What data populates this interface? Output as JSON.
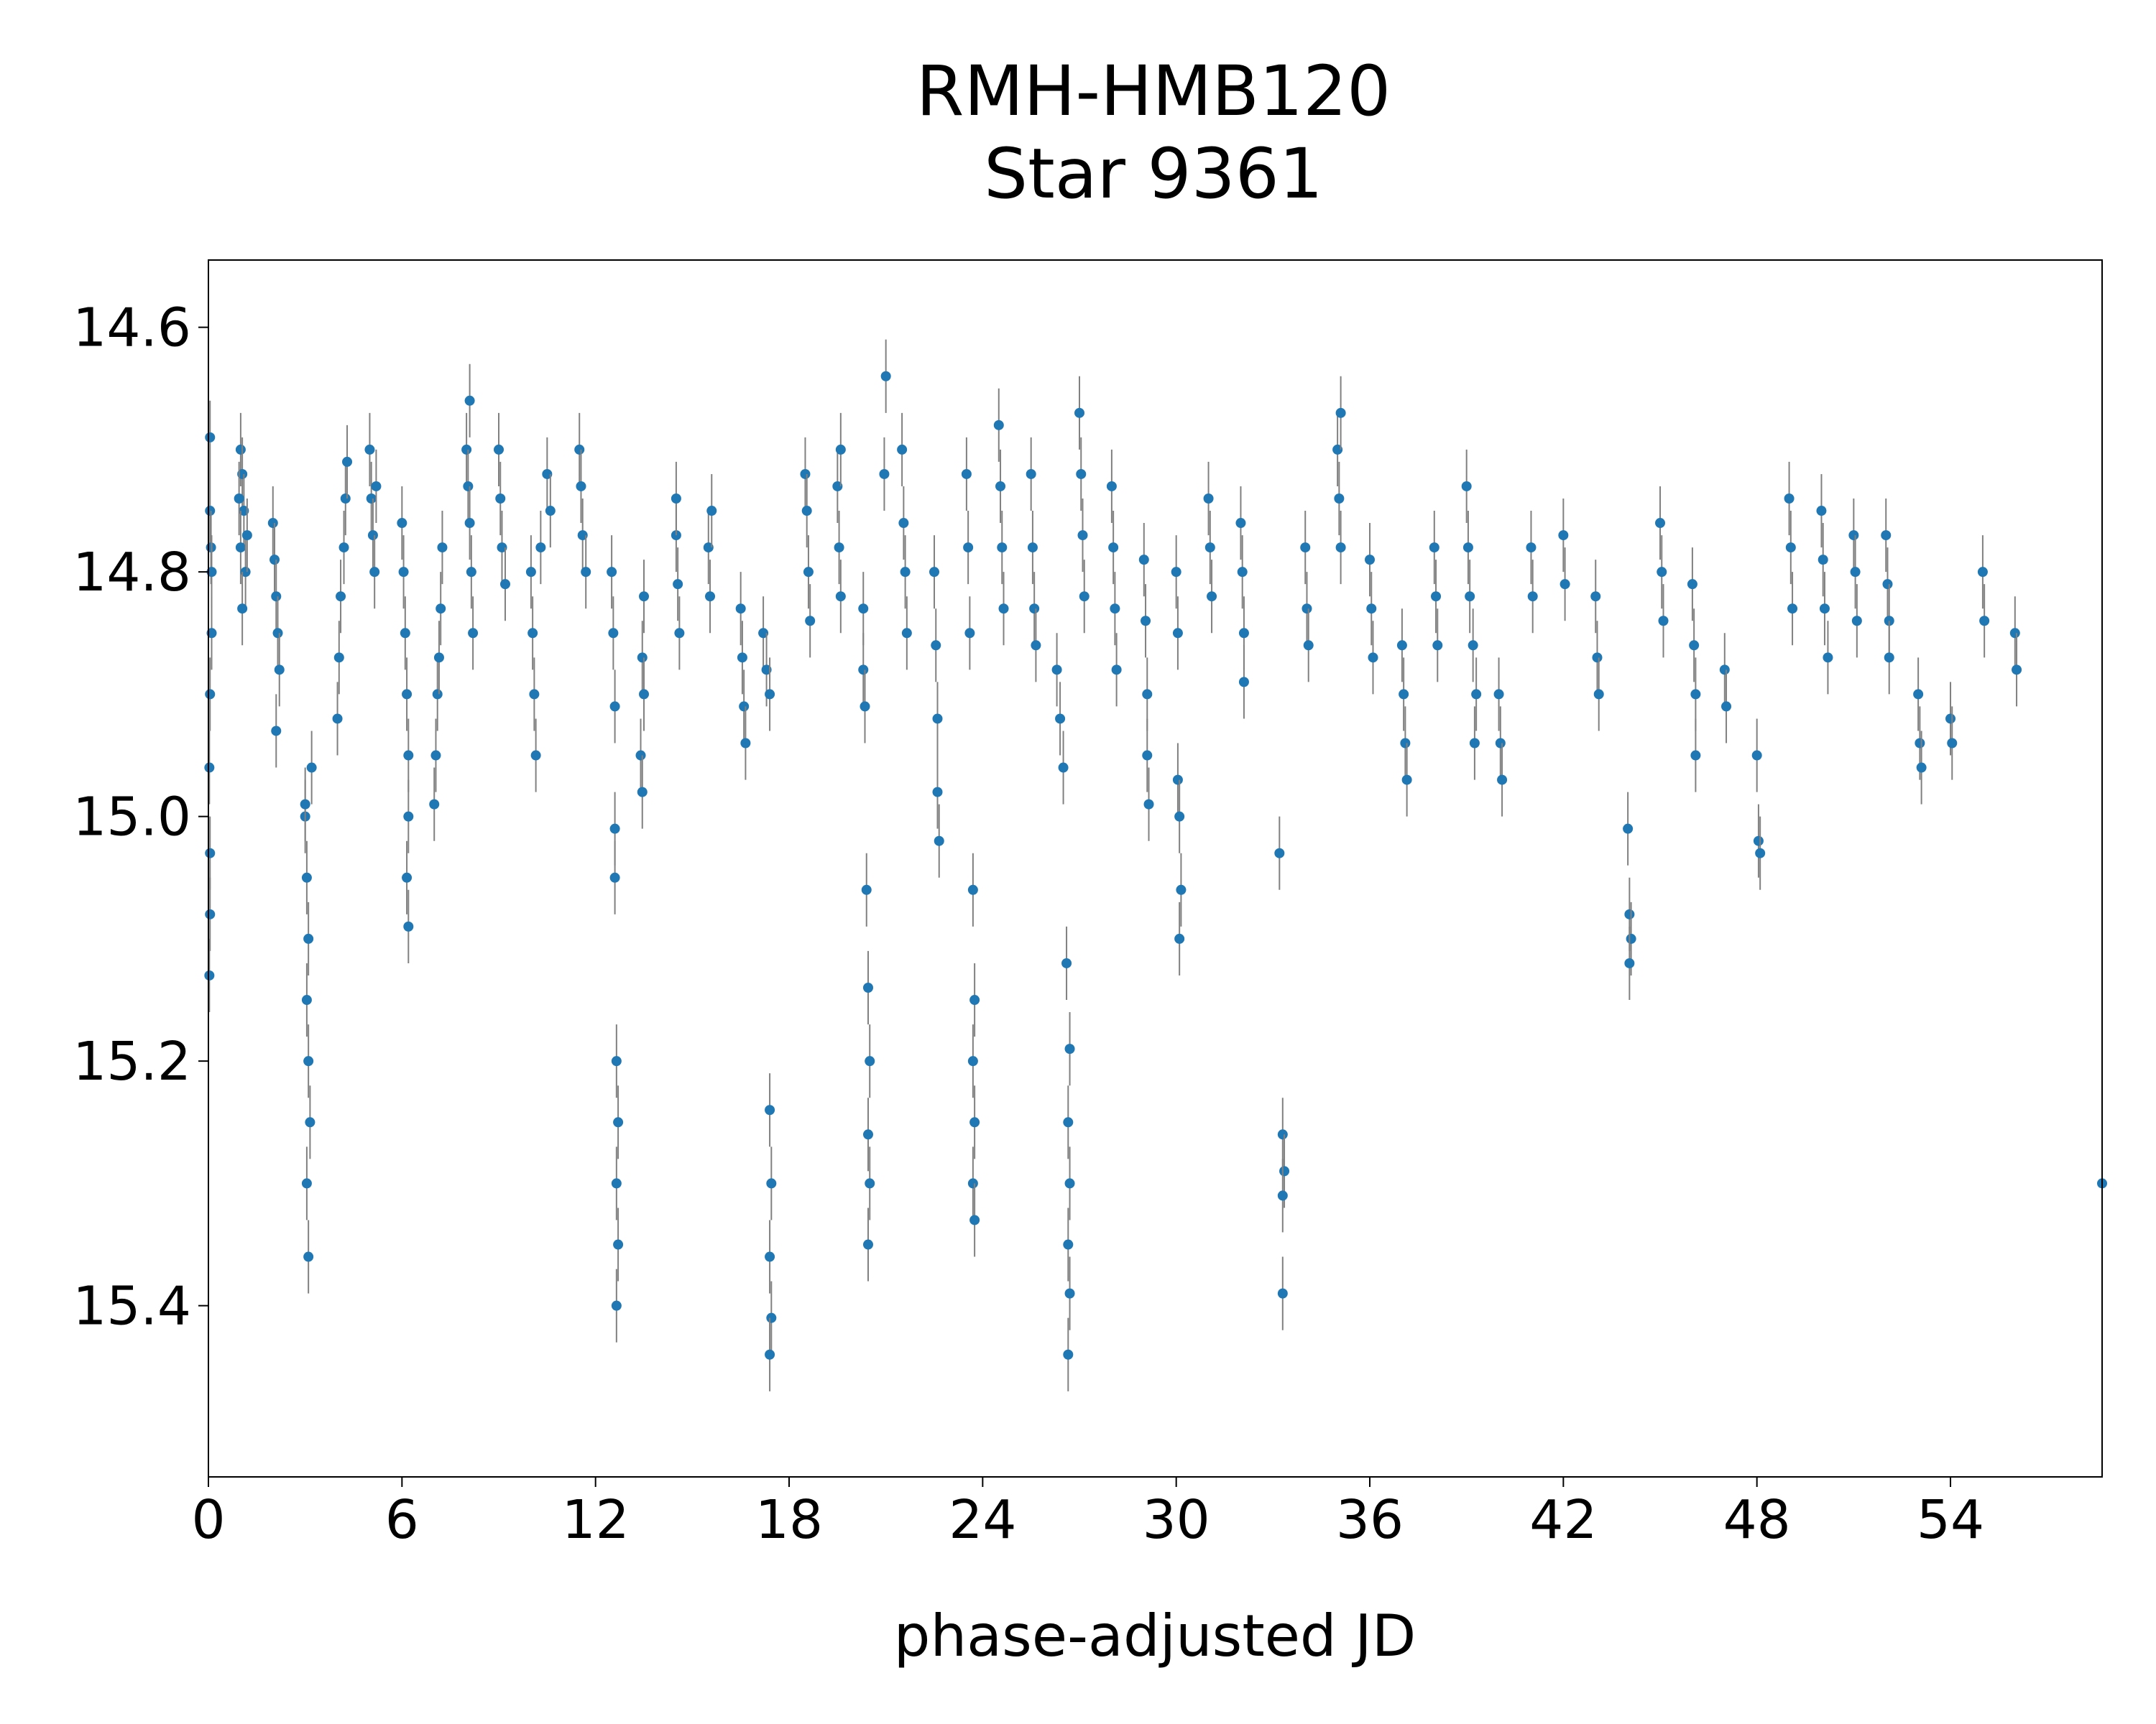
{
  "chart_data": {
    "type": "scatter",
    "title": "RMH-HMB120",
    "subtitle": "Star 9361",
    "xlabel": "phase-adjusted JD",
    "ylabel": "",
    "xlim": [
      0,
      58.7
    ],
    "ylim": [
      15.54,
      14.545
    ],
    "y_inverted": true,
    "grid": false,
    "x_ticks": [
      "0",
      "6",
      "12",
      "18",
      "24",
      "30",
      "36",
      "42",
      "48",
      "54"
    ],
    "y_ticks": [
      "14.6",
      "14.8",
      "15.0",
      "15.2",
      "15.4"
    ],
    "x_tick_values": [
      0,
      6,
      12,
      18,
      24,
      30,
      36,
      42,
      48,
      54
    ],
    "y_tick_values": [
      14.6,
      14.8,
      15.0,
      15.2,
      15.4
    ],
    "marker_color": "#1f77b4",
    "errorbar_color": "#808080",
    "error_bar_typical": 0.03,
    "series": [
      {
        "points": [
          [
            0.05,
            14.69
          ],
          [
            0.05,
            14.75
          ],
          [
            0.08,
            14.78
          ],
          [
            0.1,
            14.8
          ],
          [
            0.1,
            14.85
          ],
          [
            0.05,
            14.9
          ],
          [
            0.03,
            14.96
          ],
          [
            0.05,
            15.03
          ],
          [
            0.05,
            15.08
          ],
          [
            0.03,
            15.13
          ],
          [
            1.0,
            14.7
          ],
          [
            1.05,
            14.72
          ],
          [
            1.1,
            14.75
          ],
          [
            1.0,
            14.78
          ],
          [
            1.15,
            14.8
          ],
          [
            1.05,
            14.83
          ],
          [
            0.95,
            14.74
          ],
          [
            1.2,
            14.77
          ],
          [
            2.0,
            14.76
          ],
          [
            2.05,
            14.79
          ],
          [
            2.1,
            14.82
          ],
          [
            2.15,
            14.85
          ],
          [
            2.2,
            14.88
          ],
          [
            2.1,
            14.93
          ],
          [
            3.0,
            15.0
          ],
          [
            3.05,
            15.05
          ],
          [
            3.1,
            15.1
          ],
          [
            3.05,
            15.15
          ],
          [
            3.1,
            15.2
          ],
          [
            3.15,
            15.25
          ],
          [
            3.05,
            15.3
          ],
          [
            3.1,
            15.36
          ],
          [
            3.0,
            14.99
          ],
          [
            3.2,
            14.96
          ],
          [
            4.0,
            14.92
          ],
          [
            4.05,
            14.87
          ],
          [
            4.1,
            14.82
          ],
          [
            4.2,
            14.78
          ],
          [
            4.25,
            14.74
          ],
          [
            4.3,
            14.71
          ],
          [
            5.0,
            14.7
          ],
          [
            5.05,
            14.74
          ],
          [
            5.1,
            14.77
          ],
          [
            5.15,
            14.8
          ],
          [
            5.2,
            14.73
          ],
          [
            6.0,
            14.76
          ],
          [
            6.05,
            14.8
          ],
          [
            6.1,
            14.85
          ],
          [
            6.15,
            14.9
          ],
          [
            6.2,
            14.95
          ],
          [
            6.2,
            15.0
          ],
          [
            6.15,
            15.05
          ],
          [
            6.2,
            15.09
          ],
          [
            7.0,
            14.99
          ],
          [
            7.05,
            14.95
          ],
          [
            7.1,
            14.9
          ],
          [
            7.15,
            14.87
          ],
          [
            7.2,
            14.83
          ],
          [
            7.25,
            14.78
          ],
          [
            8.0,
            14.7
          ],
          [
            8.05,
            14.73
          ],
          [
            8.1,
            14.76
          ],
          [
            8.15,
            14.8
          ],
          [
            8.2,
            14.85
          ],
          [
            8.1,
            14.66
          ],
          [
            9.0,
            14.7
          ],
          [
            9.05,
            14.74
          ],
          [
            9.1,
            14.78
          ],
          [
            9.2,
            14.81
          ],
          [
            10.0,
            14.8
          ],
          [
            10.05,
            14.85
          ],
          [
            10.1,
            14.9
          ],
          [
            10.15,
            14.95
          ],
          [
            10.3,
            14.78
          ],
          [
            10.5,
            14.72
          ],
          [
            10.6,
            14.75
          ],
          [
            11.5,
            14.7
          ],
          [
            11.55,
            14.73
          ],
          [
            11.6,
            14.77
          ],
          [
            11.7,
            14.8
          ],
          [
            12.5,
            14.8
          ],
          [
            12.55,
            14.85
          ],
          [
            12.6,
            14.91
          ],
          [
            12.6,
            15.01
          ],
          [
            12.6,
            15.05
          ],
          [
            12.65,
            15.2
          ],
          [
            12.7,
            15.25
          ],
          [
            12.65,
            15.3
          ],
          [
            12.7,
            15.35
          ],
          [
            12.65,
            15.4
          ],
          [
            13.5,
            14.82
          ],
          [
            13.45,
            14.87
          ],
          [
            13.5,
            14.9
          ],
          [
            13.4,
            14.95
          ],
          [
            13.45,
            14.98
          ],
          [
            14.5,
            14.77
          ],
          [
            14.55,
            14.81
          ],
          [
            14.6,
            14.85
          ],
          [
            14.5,
            14.74
          ],
          [
            15.5,
            14.78
          ],
          [
            15.55,
            14.82
          ],
          [
            15.6,
            14.75
          ],
          [
            16.5,
            14.83
          ],
          [
            16.55,
            14.87
          ],
          [
            16.6,
            14.91
          ],
          [
            16.65,
            14.94
          ],
          [
            17.2,
            14.85
          ],
          [
            17.3,
            14.88
          ],
          [
            17.4,
            14.9
          ],
          [
            17.4,
            15.24
          ],
          [
            17.45,
            15.3
          ],
          [
            17.4,
            15.36
          ],
          [
            17.45,
            15.41
          ],
          [
            17.4,
            15.44
          ],
          [
            18.5,
            14.72
          ],
          [
            18.55,
            14.75
          ],
          [
            18.6,
            14.8
          ],
          [
            18.65,
            14.84
          ],
          [
            19.5,
            14.73
          ],
          [
            19.55,
            14.78
          ],
          [
            19.6,
            14.82
          ],
          [
            19.6,
            14.7
          ],
          [
            20.3,
            14.83
          ],
          [
            20.3,
            14.88
          ],
          [
            20.35,
            14.91
          ],
          [
            20.4,
            15.06
          ],
          [
            20.45,
            15.14
          ],
          [
            20.5,
            15.2
          ],
          [
            20.45,
            15.26
          ],
          [
            20.5,
            15.3
          ],
          [
            20.45,
            15.35
          ],
          [
            21.0,
            14.64
          ],
          [
            20.95,
            14.72
          ],
          [
            21.5,
            14.7
          ],
          [
            21.55,
            14.76
          ],
          [
            21.6,
            14.8
          ],
          [
            21.65,
            14.85
          ],
          [
            22.5,
            14.8
          ],
          [
            22.55,
            14.86
          ],
          [
            22.6,
            14.92
          ],
          [
            22.6,
            14.98
          ],
          [
            22.65,
            15.02
          ],
          [
            23.5,
            14.72
          ],
          [
            23.55,
            14.78
          ],
          [
            23.6,
            14.85
          ],
          [
            23.7,
            15.06
          ],
          [
            23.75,
            15.15
          ],
          [
            23.7,
            15.2
          ],
          [
            23.75,
            15.25
          ],
          [
            23.7,
            15.3
          ],
          [
            23.75,
            15.33
          ],
          [
            24.5,
            14.68
          ],
          [
            24.55,
            14.73
          ],
          [
            24.6,
            14.78
          ],
          [
            24.65,
            14.83
          ],
          [
            25.5,
            14.72
          ],
          [
            25.55,
            14.78
          ],
          [
            25.6,
            14.83
          ],
          [
            25.65,
            14.86
          ],
          [
            26.3,
            14.88
          ],
          [
            26.4,
            14.92
          ],
          [
            26.5,
            14.96
          ],
          [
            26.6,
            15.12
          ],
          [
            26.7,
            15.19
          ],
          [
            26.65,
            15.25
          ],
          [
            26.7,
            15.3
          ],
          [
            26.65,
            15.35
          ],
          [
            26.7,
            15.39
          ],
          [
            26.65,
            15.44
          ],
          [
            27.0,
            14.67
          ],
          [
            27.05,
            14.72
          ],
          [
            27.1,
            14.77
          ],
          [
            27.15,
            14.82
          ],
          [
            28.0,
            14.73
          ],
          [
            28.05,
            14.78
          ],
          [
            28.1,
            14.83
          ],
          [
            28.15,
            14.88
          ],
          [
            29.0,
            14.79
          ],
          [
            29.05,
            14.84
          ],
          [
            29.1,
            14.9
          ],
          [
            29.1,
            14.95
          ],
          [
            29.15,
            14.99
          ],
          [
            30.0,
            14.8
          ],
          [
            30.05,
            14.85
          ],
          [
            30.05,
            14.97
          ],
          [
            30.1,
            15.0
          ],
          [
            30.15,
            15.06
          ],
          [
            30.1,
            15.1
          ],
          [
            31.0,
            14.74
          ],
          [
            31.05,
            14.78
          ],
          [
            31.1,
            14.82
          ],
          [
            32.0,
            14.76
          ],
          [
            32.05,
            14.8
          ],
          [
            32.1,
            14.85
          ],
          [
            32.1,
            14.89
          ],
          [
            33.2,
            15.03
          ],
          [
            33.3,
            15.26
          ],
          [
            33.35,
            15.29
          ],
          [
            33.3,
            15.31
          ],
          [
            33.3,
            15.39
          ],
          [
            34.0,
            14.78
          ],
          [
            34.05,
            14.83
          ],
          [
            34.1,
            14.86
          ],
          [
            35.0,
            14.7
          ],
          [
            35.05,
            14.74
          ],
          [
            35.1,
            14.78
          ],
          [
            35.1,
            14.67
          ],
          [
            36.0,
            14.79
          ],
          [
            36.05,
            14.83
          ],
          [
            36.1,
            14.87
          ],
          [
            37.0,
            14.86
          ],
          [
            37.05,
            14.9
          ],
          [
            37.1,
            14.94
          ],
          [
            37.15,
            14.97
          ],
          [
            38.0,
            14.78
          ],
          [
            38.05,
            14.82
          ],
          [
            38.1,
            14.86
          ],
          [
            39.0,
            14.73
          ],
          [
            39.05,
            14.78
          ],
          [
            39.1,
            14.82
          ],
          [
            39.2,
            14.86
          ],
          [
            39.3,
            14.9
          ],
          [
            39.25,
            14.94
          ],
          [
            40.0,
            14.9
          ],
          [
            40.05,
            14.94
          ],
          [
            40.1,
            14.97
          ],
          [
            41.0,
            14.78
          ],
          [
            41.05,
            14.82
          ],
          [
            42.0,
            14.77
          ],
          [
            42.05,
            14.81
          ],
          [
            43.0,
            14.82
          ],
          [
            43.05,
            14.87
          ],
          [
            43.1,
            14.9
          ],
          [
            44.0,
            15.01
          ],
          [
            44.05,
            15.08
          ],
          [
            44.1,
            15.1
          ],
          [
            44.05,
            15.12
          ],
          [
            45.0,
            14.76
          ],
          [
            45.05,
            14.8
          ],
          [
            45.1,
            14.84
          ],
          [
            46.0,
            14.81
          ],
          [
            46.05,
            14.86
          ],
          [
            46.1,
            14.9
          ],
          [
            46.1,
            14.95
          ],
          [
            47.0,
            14.88
          ],
          [
            47.05,
            14.91
          ],
          [
            48.0,
            14.95
          ],
          [
            48.05,
            15.02
          ],
          [
            48.1,
            15.03
          ],
          [
            49.0,
            14.74
          ],
          [
            49.05,
            14.78
          ],
          [
            49.1,
            14.83
          ],
          [
            50.0,
            14.75
          ],
          [
            50.05,
            14.79
          ],
          [
            50.1,
            14.83
          ],
          [
            50.2,
            14.87
          ],
          [
            51.0,
            14.77
          ],
          [
            51.05,
            14.8
          ],
          [
            51.1,
            14.84
          ],
          [
            52.0,
            14.77
          ],
          [
            52.05,
            14.81
          ],
          [
            52.1,
            14.84
          ],
          [
            52.1,
            14.87
          ],
          [
            53.0,
            14.9
          ],
          [
            53.05,
            14.94
          ],
          [
            53.1,
            14.96
          ],
          [
            54.0,
            14.92
          ],
          [
            54.05,
            14.94
          ],
          [
            55.0,
            14.8
          ],
          [
            55.05,
            14.84
          ],
          [
            56.0,
            14.85
          ],
          [
            56.05,
            14.88
          ],
          [
            58.7,
            15.3
          ]
        ]
      }
    ]
  }
}
